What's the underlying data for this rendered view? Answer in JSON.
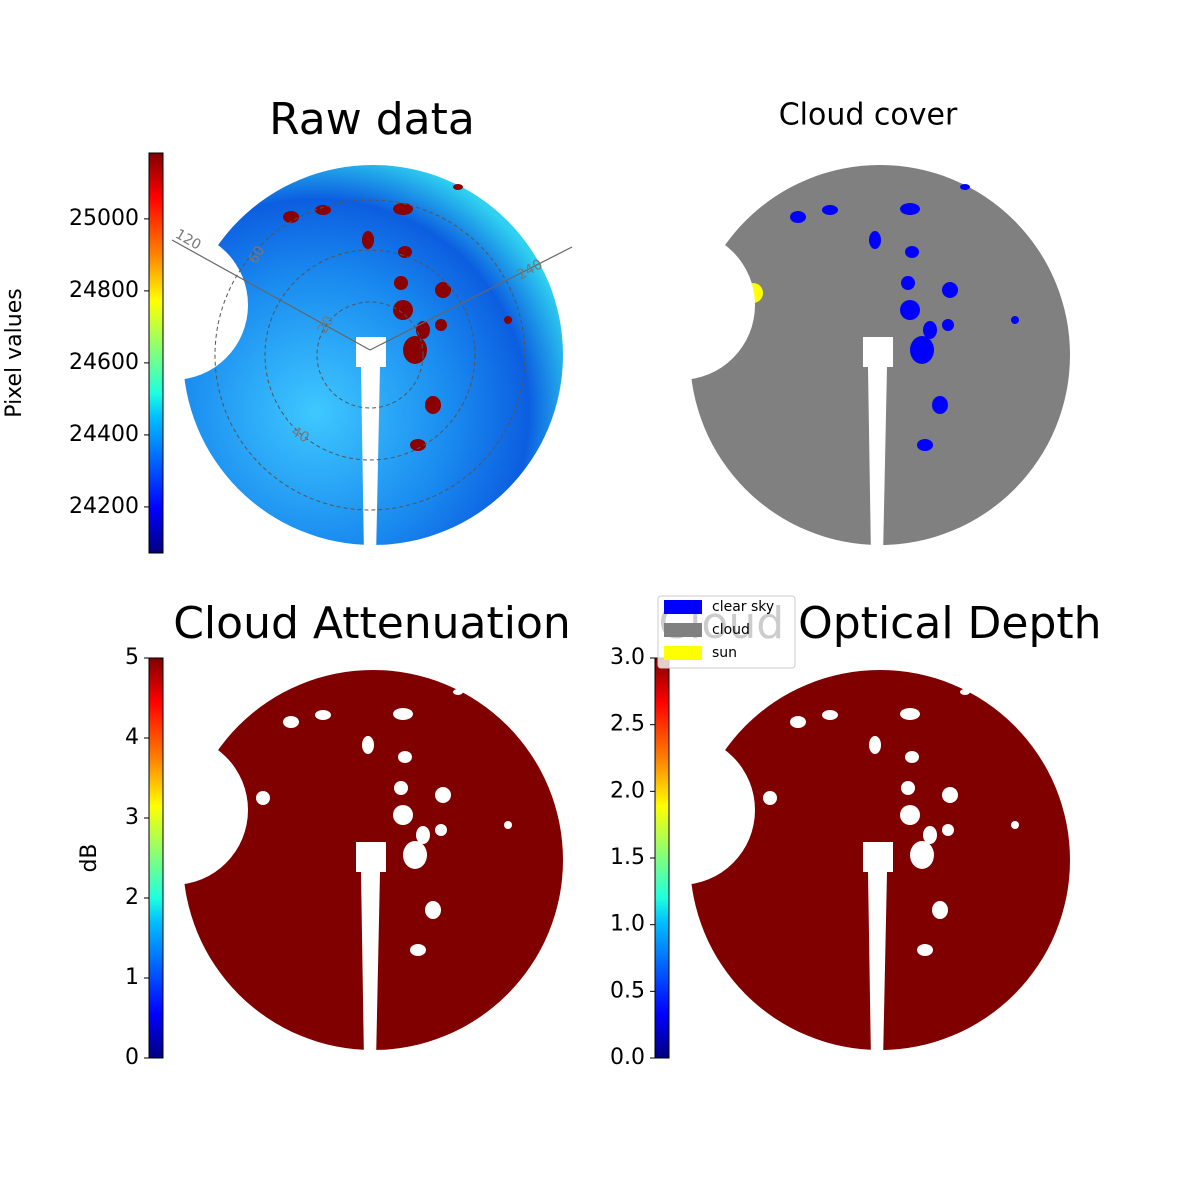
{
  "chart_data": [
    {
      "type": "image",
      "title": "Raw data",
      "colormap": "jet",
      "ylabel": "Pixel values",
      "ylim": [
        24072,
        25183
      ],
      "yticks": [
        24200,
        24400,
        24600,
        24800,
        25000
      ],
      "annotations": [
        "120",
        "60",
        "240",
        "20",
        "40"
      ]
    },
    {
      "type": "image",
      "title": "Cloud cover",
      "series": [
        {
          "name": "clear sky",
          "color": "#0000ff"
        },
        {
          "name": "cloud",
          "color": "#808080"
        },
        {
          "name": "sun",
          "color": "#ffff00"
        }
      ]
    },
    {
      "type": "image",
      "title": "Cloud Attenuation",
      "colormap": "jet",
      "ylabel": "dB",
      "ylim": [
        0,
        5
      ],
      "yticks": [
        0,
        1,
        2,
        3,
        4,
        5
      ]
    },
    {
      "type": "image",
      "title": "Cloud Optical Depth",
      "colormap": "jet",
      "ylim": [
        0,
        3
      ],
      "yticks": [
        {
          "value": 0,
          "label": "0.0"
        },
        {
          "value": 0.5,
          "label": "0.5"
        },
        {
          "value": 1,
          "label": "1.0"
        },
        {
          "value": 1.5,
          "label": "1.5"
        },
        {
          "value": 2,
          "label": "2.0"
        },
        {
          "value": 2.5,
          "label": "2.5"
        },
        {
          "value": 3,
          "label": "3.0"
        }
      ]
    }
  ]
}
